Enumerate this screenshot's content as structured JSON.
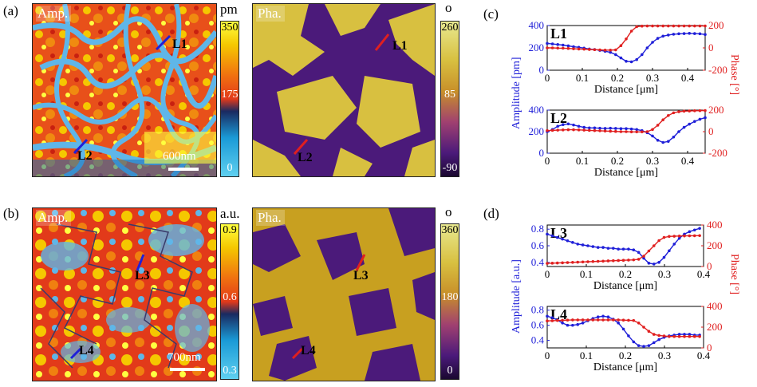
{
  "panels": {
    "a": "(a)",
    "b": "(b)",
    "c": "(c)",
    "d": "(d)"
  },
  "row_a": {
    "amp_label": "Amp.",
    "pha_label": "Pha.",
    "line1": "L1",
    "line2": "L2",
    "scale_text": "600nm",
    "amp_unit": "pm",
    "amp_ticks": [
      "350",
      "175",
      "0"
    ],
    "pha_unit": "o",
    "pha_ticks": [
      "260",
      "85",
      "-90"
    ]
  },
  "row_b": {
    "amp_label": "Amp.",
    "pha_label": "Pha.",
    "line3": "L3",
    "line4": "L4",
    "scale_text": "700nm",
    "amp_unit": "a.u.",
    "amp_ticks": [
      "0.9",
      "0.6",
      "0.3"
    ],
    "pha_unit": "o",
    "pha_ticks": [
      "360",
      "180",
      "0"
    ]
  },
  "colors": {
    "amplitude": "#1f1fd8",
    "phase": "#e01f1f",
    "amp_map": [
      "#5fb6e8",
      "#1a9ad6",
      "#e23a1a",
      "#f07010",
      "#f5c800",
      "#ffff40"
    ],
    "pha_map": [
      "#3a1260",
      "#4b1a7a",
      "#c8a020",
      "#d8c040",
      "#e8d870"
    ]
  },
  "chart_data": [
    {
      "type": "line",
      "panel": "c",
      "title": "L1",
      "xlabel": "Distance [μm]",
      "ylabel": "Amplitude [pm]",
      "y2label": "Phase [°]",
      "xlim": [
        0,
        0.45
      ],
      "xticks": [
        "0",
        "0.1",
        "0.2",
        "0.3",
        "0.4"
      ],
      "ylim": [
        0,
        400
      ],
      "yticks": [
        "0",
        "200",
        "400"
      ],
      "y2lim": [
        -200,
        200
      ],
      "y2ticks": [
        "-200",
        "0",
        "200"
      ],
      "x": [
        0,
        0.015,
        0.03,
        0.045,
        0.06,
        0.075,
        0.09,
        0.105,
        0.12,
        0.135,
        0.15,
        0.165,
        0.18,
        0.195,
        0.21,
        0.225,
        0.24,
        0.255,
        0.27,
        0.285,
        0.3,
        0.315,
        0.33,
        0.345,
        0.36,
        0.375,
        0.39,
        0.405,
        0.42,
        0.435,
        0.45
      ],
      "series": [
        {
          "name": "Amplitude",
          "axis": "left",
          "values": [
            240,
            235,
            230,
            225,
            218,
            210,
            205,
            198,
            190,
            185,
            178,
            170,
            160,
            140,
            110,
            80,
            75,
            95,
            140,
            200,
            250,
            285,
            305,
            315,
            322,
            326,
            328,
            330,
            328,
            326,
            320
          ]
        },
        {
          "name": "Phase",
          "axis": "right",
          "values": [
            0,
            0,
            -2,
            -3,
            -5,
            -8,
            -10,
            -12,
            -14,
            -16,
            -18,
            -20,
            -20,
            -18,
            20,
            80,
            150,
            190,
            195,
            196,
            196,
            196,
            196,
            196,
            196,
            196,
            196,
            196,
            196,
            196,
            196
          ]
        }
      ]
    },
    {
      "type": "line",
      "panel": "c",
      "title": "L2",
      "xlabel": "Distance [μm]",
      "ylabel": "Amplitude [pm]",
      "y2label": "Phase [°]",
      "xlim": [
        0,
        0.45
      ],
      "xticks": [
        "0",
        "0.1",
        "0.2",
        "0.3",
        "0.4"
      ],
      "ylim": [
        0,
        400
      ],
      "yticks": [
        "0",
        "200",
        "400"
      ],
      "y2lim": [
        -200,
        200
      ],
      "y2ticks": [
        "-200",
        "0",
        "200"
      ],
      "x": [
        0,
        0.015,
        0.03,
        0.045,
        0.06,
        0.075,
        0.09,
        0.105,
        0.12,
        0.135,
        0.15,
        0.165,
        0.18,
        0.195,
        0.21,
        0.225,
        0.24,
        0.255,
        0.27,
        0.285,
        0.3,
        0.315,
        0.33,
        0.345,
        0.36,
        0.375,
        0.39,
        0.405,
        0.42,
        0.435,
        0.45
      ],
      "series": [
        {
          "name": "Amplitude",
          "axis": "left",
          "values": [
            200,
            220,
            250,
            265,
            272,
            262,
            250,
            240,
            235,
            235,
            232,
            230,
            232,
            230,
            228,
            228,
            225,
            220,
            210,
            190,
            160,
            120,
            100,
            110,
            150,
            200,
            240,
            270,
            295,
            315,
            330
          ]
        },
        {
          "name": "Phase",
          "axis": "right",
          "values": [
            10,
            12,
            14,
            16,
            18,
            18,
            16,
            14,
            12,
            10,
            8,
            6,
            4,
            2,
            0,
            0,
            -2,
            -2,
            -2,
            0,
            20,
            60,
            110,
            150,
            175,
            185,
            190,
            192,
            194,
            195,
            196
          ]
        }
      ]
    },
    {
      "type": "line",
      "panel": "d",
      "title": "L3",
      "xlabel": "Distance [μm]",
      "ylabel": "Amplitude [a.u.]",
      "y2label": "Phase [°]",
      "xlim": [
        0,
        0.4
      ],
      "xticks": [
        "0",
        "0.1",
        "0.2",
        "0.3",
        "0.4"
      ],
      "ylim": [
        0.35,
        0.85
      ],
      "yticks": [
        "0.4",
        "0.6",
        "0.8"
      ],
      "y2lim": [
        0,
        400
      ],
      "y2ticks": [
        "0",
        "200",
        "400"
      ],
      "x": [
        0,
        0.013,
        0.026,
        0.039,
        0.052,
        0.065,
        0.078,
        0.091,
        0.104,
        0.117,
        0.13,
        0.143,
        0.156,
        0.169,
        0.182,
        0.195,
        0.208,
        0.221,
        0.234,
        0.247,
        0.26,
        0.273,
        0.286,
        0.299,
        0.312,
        0.325,
        0.338,
        0.351,
        0.364,
        0.377,
        0.39
      ],
      "series": [
        {
          "name": "Amplitude",
          "axis": "left",
          "values": [
            0.74,
            0.72,
            0.7,
            0.68,
            0.66,
            0.64,
            0.62,
            0.61,
            0.6,
            0.59,
            0.58,
            0.58,
            0.57,
            0.57,
            0.56,
            0.56,
            0.56,
            0.55,
            0.52,
            0.45,
            0.39,
            0.38,
            0.4,
            0.46,
            0.54,
            0.62,
            0.69,
            0.74,
            0.77,
            0.79,
            0.81
          ]
        },
        {
          "name": "Phase",
          "axis": "right",
          "values": [
            30,
            32,
            34,
            36,
            38,
            40,
            42,
            44,
            46,
            48,
            50,
            52,
            54,
            56,
            58,
            60,
            62,
            64,
            70,
            100,
            150,
            200,
            250,
            280,
            290,
            292,
            294,
            295,
            296,
            297,
            298
          ]
        }
      ]
    },
    {
      "type": "line",
      "panel": "d",
      "title": "L4",
      "xlabel": "Distance [μm]",
      "ylabel": "Amplitude [a.u.]",
      "y2label": "Phase [°]",
      "xlim": [
        0,
        0.4
      ],
      "xticks": [
        "0",
        "0.1",
        "0.2",
        "0.3",
        "0.4"
      ],
      "ylim": [
        0.3,
        0.85
      ],
      "yticks": [
        "0.4",
        "0.6",
        "0.8"
      ],
      "y2lim": [
        0,
        400
      ],
      "y2ticks": [
        "0",
        "200",
        "400"
      ],
      "x": [
        0,
        0.013,
        0.026,
        0.039,
        0.052,
        0.065,
        0.078,
        0.091,
        0.104,
        0.117,
        0.13,
        0.143,
        0.156,
        0.169,
        0.182,
        0.195,
        0.208,
        0.221,
        0.234,
        0.247,
        0.26,
        0.273,
        0.286,
        0.299,
        0.312,
        0.325,
        0.338,
        0.351,
        0.364,
        0.377,
        0.39
      ],
      "series": [
        {
          "name": "Amplitude",
          "axis": "left",
          "values": [
            0.72,
            0.7,
            0.67,
            0.63,
            0.6,
            0.6,
            0.61,
            0.63,
            0.66,
            0.69,
            0.71,
            0.72,
            0.71,
            0.68,
            0.63,
            0.55,
            0.46,
            0.38,
            0.33,
            0.32,
            0.33,
            0.37,
            0.41,
            0.44,
            0.46,
            0.47,
            0.48,
            0.48,
            0.48,
            0.47,
            0.47
          ]
        },
        {
          "name": "Phase",
          "axis": "right",
          "values": [
            260,
            262,
            264,
            266,
            268,
            270,
            270,
            270,
            270,
            270,
            270,
            270,
            270,
            270,
            270,
            268,
            266,
            264,
            240,
            200,
            160,
            130,
            120,
            115,
            110,
            110,
            110,
            110,
            110,
            110,
            110
          ]
        }
      ]
    }
  ]
}
